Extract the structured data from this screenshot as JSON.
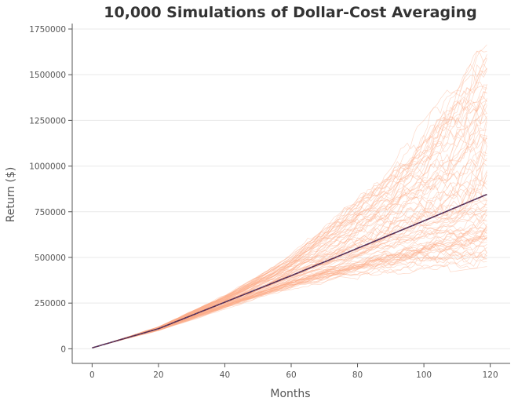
{
  "chart_data": {
    "type": "line",
    "title": "10,000 Simulations of Dollar-Cost Averaging",
    "xlabel": "Months",
    "ylabel": "Return ($)",
    "xlim": [
      -6,
      126
    ],
    "ylim": [
      -80000,
      1780000
    ],
    "xticks": [
      0,
      20,
      40,
      60,
      80,
      100,
      120
    ],
    "yticks": [
      0,
      250000,
      500000,
      750000,
      1000000,
      1250000,
      1500000,
      1750000
    ],
    "grid": "horizontal",
    "legend": "none",
    "months": 120,
    "series": [
      {
        "role": "mean",
        "x": [
          0,
          20,
          40,
          60,
          80,
          100,
          119
        ],
        "values": [
          5000,
          110000,
          255000,
          400000,
          550000,
          700000,
          845000
        ]
      }
    ],
    "simulation_envelope": {
      "x": [
        0,
        20,
        40,
        60,
        80,
        100,
        119
      ],
      "low": [
        5000,
        85000,
        190000,
        300000,
        360000,
        400000,
        450000
      ],
      "high": [
        5000,
        135000,
        320000,
        550000,
        900000,
        1250000,
        1700000
      ]
    },
    "colors": {
      "simulations": "#fdae8a",
      "mean": "#5a2a4a",
      "mean_overlay": "#4a6fd0"
    }
  }
}
